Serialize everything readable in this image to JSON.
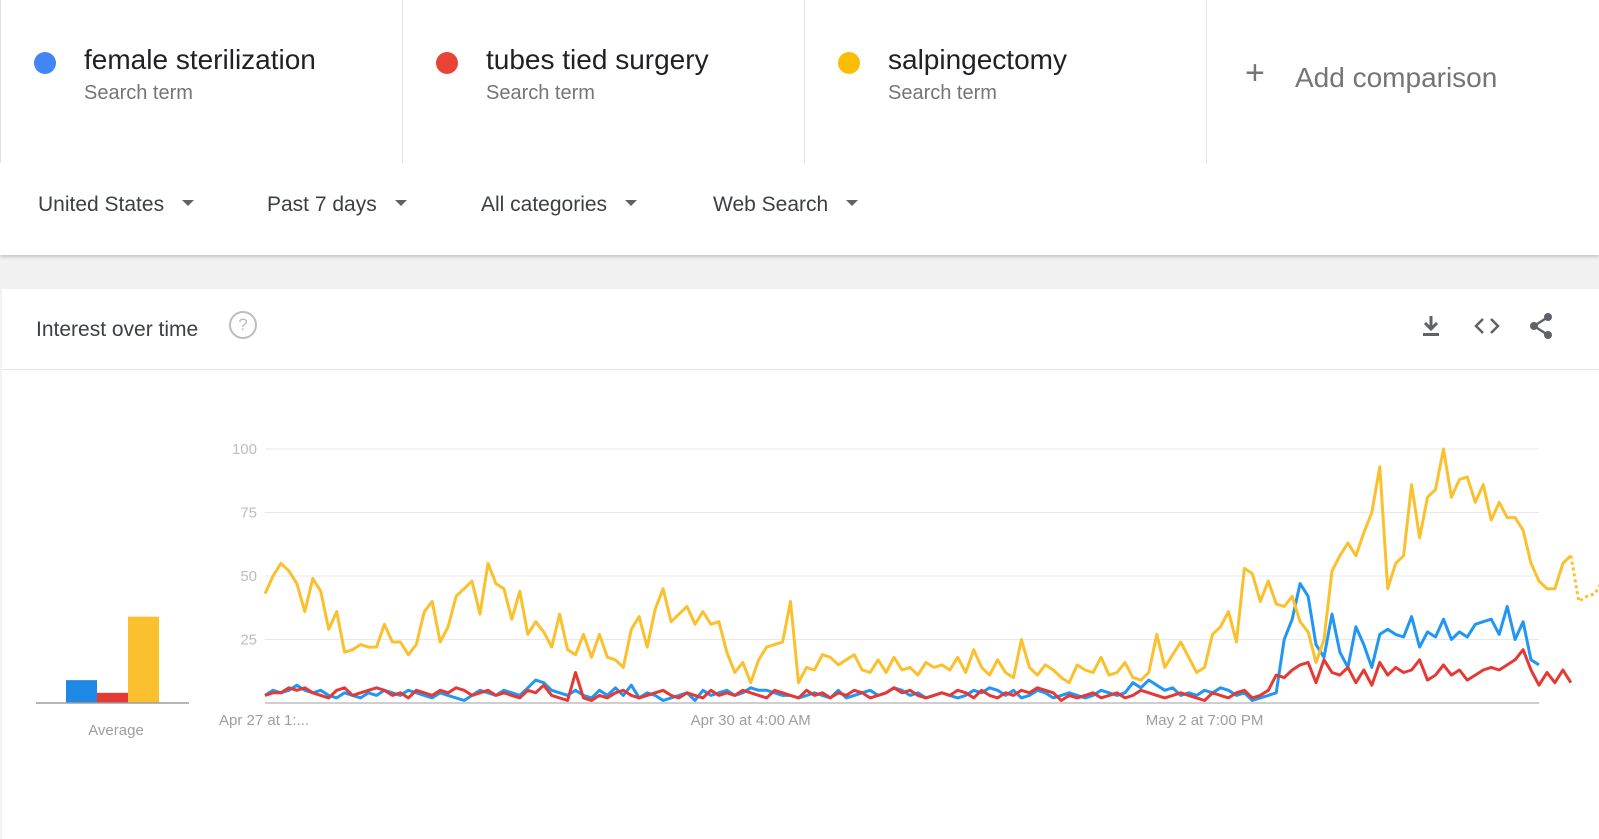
{
  "terms": [
    {
      "name": "female sterilization",
      "sub": "Search term",
      "color": "#4285f4"
    },
    {
      "name": "tubes tied surgery",
      "sub": "Search term",
      "color": "#ea4335"
    },
    {
      "name": "salpingectomy",
      "sub": "Search term",
      "color": "#fbbc04"
    }
  ],
  "add_comparison": {
    "plus": "+",
    "label": "Add comparison"
  },
  "filters": {
    "region": "United States",
    "time": "Past 7 days",
    "category": "All categories",
    "search_type": "Web Search"
  },
  "card": {
    "title": "Interest over time",
    "help": "?",
    "tools": [
      "download-icon",
      "embed-icon",
      "share-icon"
    ]
  },
  "chart_data": {
    "type": "line",
    "yticks": [
      25,
      50,
      75,
      100
    ],
    "ylim": [
      0,
      100
    ],
    "xtick_labels": [
      "Apr 27 at 1:...",
      "Apr 30 at 4:00 AM",
      "May 2 at 7:00 PM"
    ],
    "xtick_index": [
      0,
      61,
      118
    ],
    "average_label": "Average",
    "average": [
      {
        "name": "female sterilization",
        "value": 9,
        "color": "#1e88e5"
      },
      {
        "name": "tubes tied surgery",
        "value": 4,
        "color": "#e53935"
      },
      {
        "name": "salpingectomy",
        "value": 34,
        "color": "#fbc02d"
      }
    ],
    "series": [
      {
        "name": "female sterilization",
        "color": "#2196f3",
        "values": [
          3,
          5,
          4,
          5,
          7,
          5,
          4,
          5,
          3,
          2,
          4,
          3,
          2,
          4,
          3,
          5,
          4,
          3,
          5,
          4,
          3,
          2,
          4,
          3,
          2,
          1,
          3,
          5,
          4,
          3,
          5,
          4,
          3,
          6,
          9,
          8,
          5,
          4,
          3,
          5,
          3,
          2,
          5,
          3,
          6,
          3,
          7,
          2,
          4,
          3,
          1,
          2,
          3,
          4,
          1,
          5,
          3,
          4,
          5,
          3,
          4,
          6,
          5,
          5,
          4,
          3,
          3,
          2,
          3,
          4,
          3,
          2,
          5,
          2,
          3,
          4,
          5,
          3,
          4,
          6,
          5,
          3,
          4,
          2,
          3,
          4,
          3,
          2,
          3,
          5,
          4,
          6,
          5,
          3,
          5,
          2,
          3,
          5,
          4,
          2,
          3,
          4,
          3,
          2,
          3,
          5,
          4,
          3,
          4,
          8,
          6,
          9,
          7,
          5,
          6,
          3,
          4,
          3,
          5,
          4,
          6,
          5,
          3,
          4,
          1,
          2,
          3,
          4,
          25,
          33,
          47,
          42,
          23,
          18,
          35,
          20,
          14,
          30,
          23,
          14,
          27,
          29,
          27,
          26,
          34,
          22,
          28,
          26,
          33,
          25,
          28,
          26,
          31,
          32,
          33,
          27,
          38,
          25,
          32,
          17,
          15
        ]
      },
      {
        "name": "tubes tied surgery",
        "color": "#e53935",
        "values": [
          3,
          4,
          4,
          6,
          5,
          6,
          4,
          3,
          2,
          5,
          6,
          3,
          4,
          5,
          6,
          5,
          3,
          4,
          2,
          5,
          4,
          3,
          5,
          4,
          6,
          5,
          3,
          4,
          5,
          3,
          4,
          3,
          2,
          5,
          4,
          7,
          3,
          2,
          1,
          12,
          2,
          1,
          3,
          2,
          4,
          5,
          3,
          2,
          3,
          4,
          5,
          3,
          2,
          4,
          3,
          2,
          5,
          3,
          4,
          3,
          5,
          4,
          3,
          2,
          5,
          4,
          3,
          2,
          5,
          3,
          4,
          2,
          4,
          3,
          5,
          4,
          2,
          3,
          4,
          6,
          4,
          5,
          3,
          2,
          3,
          4,
          3,
          5,
          4,
          2,
          5,
          3,
          2,
          4,
          3,
          5,
          4,
          6,
          5,
          4,
          1,
          3,
          2,
          3,
          4,
          2,
          3,
          4,
          2,
          3,
          5,
          4,
          3,
          2,
          3,
          4,
          3,
          2,
          1,
          4,
          3,
          2,
          4,
          5,
          2,
          3,
          5,
          11,
          10,
          13,
          15,
          16,
          8,
          17,
          12,
          11,
          14,
          8,
          13,
          7,
          16,
          11,
          14,
          12,
          13,
          17,
          9,
          11,
          15,
          11,
          13,
          9,
          11,
          13,
          14,
          13,
          15,
          17,
          21,
          13,
          7,
          12,
          8,
          13,
          8
        ]
      },
      {
        "name": "salpingectomy",
        "color": "#fbc02d",
        "values": [
          43,
          50,
          55,
          52,
          47,
          36,
          49,
          44,
          29,
          36,
          20,
          21,
          23,
          22,
          22,
          31,
          24,
          24,
          19,
          23,
          36,
          40,
          24,
          30,
          42,
          45,
          48,
          35,
          55,
          47,
          45,
          33,
          44,
          27,
          32,
          28,
          22,
          35,
          21,
          19,
          27,
          18,
          27,
          18,
          17,
          14,
          29,
          34,
          22,
          37,
          45,
          32,
          35,
          38,
          31,
          36,
          31,
          32,
          20,
          12,
          16,
          8,
          17,
          22,
          23,
          24,
          40,
          8,
          14,
          13,
          19,
          18,
          15,
          17,
          19,
          13,
          12,
          17,
          12,
          18,
          13,
          14,
          11,
          16,
          14,
          15,
          13,
          18,
          12,
          21,
          14,
          11,
          17,
          12,
          10,
          25,
          14,
          11,
          15,
          13,
          10,
          8,
          15,
          13,
          12,
          18,
          11,
          12,
          16,
          10,
          9,
          12,
          27,
          14,
          19,
          24,
          18,
          12,
          14,
          27,
          30,
          36,
          24,
          53,
          51,
          40,
          48,
          39,
          38,
          42,
          32,
          28,
          16,
          25,
          52,
          58,
          63,
          58,
          67,
          75,
          93,
          45,
          55,
          58,
          86,
          65,
          81,
          84,
          100,
          81,
          88,
          89,
          79,
          86,
          72,
          79,
          73,
          73,
          68,
          55,
          48,
          45,
          45,
          55,
          58,
          40,
          42,
          43,
          48,
          60
        ]
      }
    ]
  }
}
